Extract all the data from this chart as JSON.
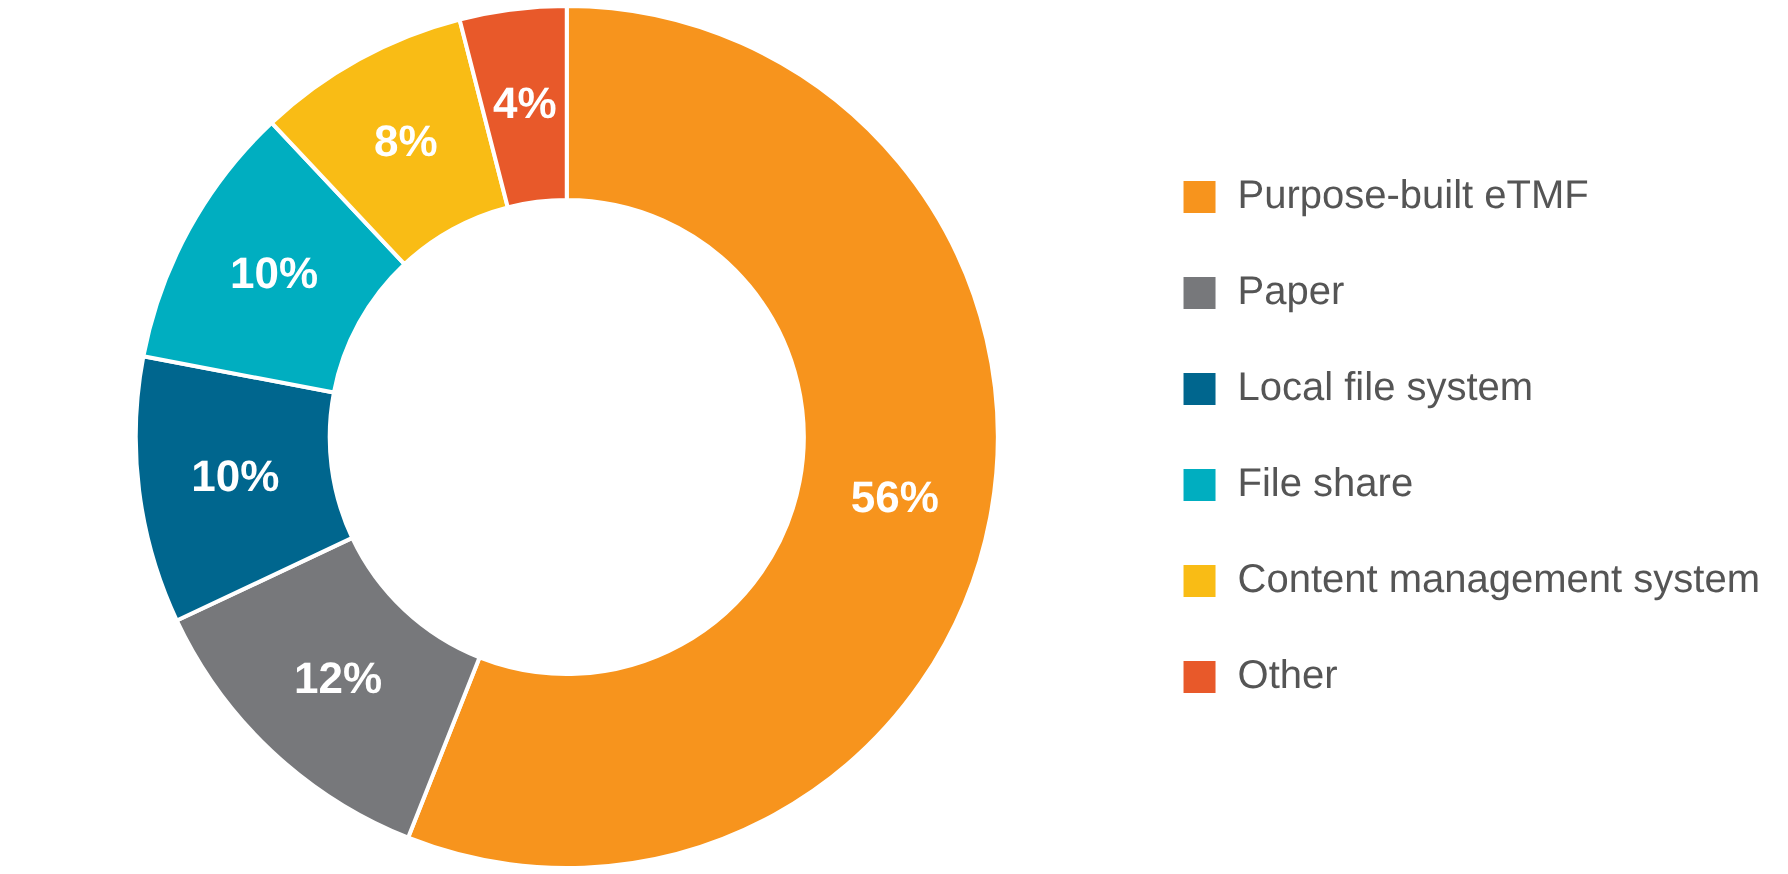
{
  "chart_data": {
    "type": "donut",
    "categories": [
      "Purpose-built eTMF",
      "Paper",
      "Local file system",
      "File share",
      "Content management system",
      "Other"
    ],
    "values": [
      56,
      12,
      10,
      10,
      8,
      4
    ],
    "colors": [
      "#f7941d",
      "#77787b",
      "#00668e",
      "#00aec0",
      "#f9bc15",
      "#e8592a"
    ],
    "value_labels": [
      "56%",
      "12%",
      "10%",
      "10%",
      "8%",
      "4%"
    ],
    "legend": "right"
  }
}
